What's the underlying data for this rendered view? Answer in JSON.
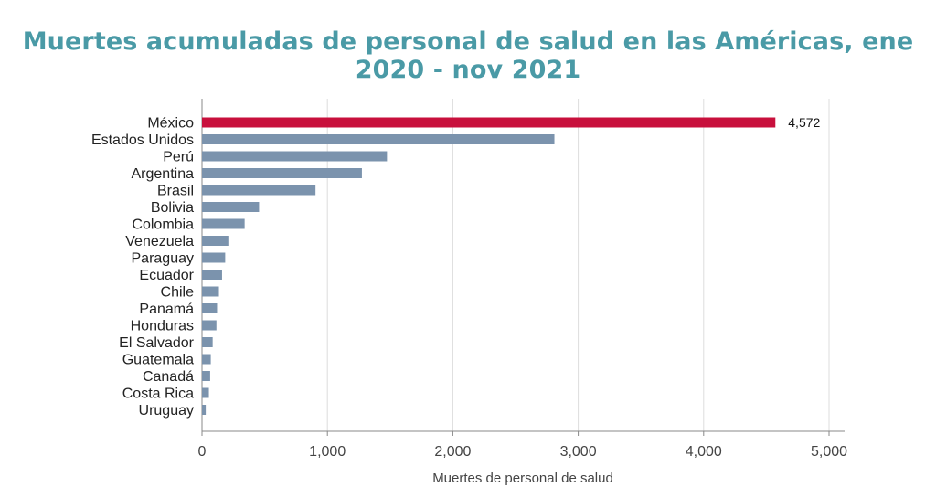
{
  "chart_data": {
    "type": "bar",
    "orientation": "horizontal",
    "title": "Muertes acumuladas de personal de salud en las Américas, ene 2020 - nov 2021",
    "xlabel": "Muertes de personal de salud",
    "ylabel": "",
    "xlim": [
      0,
      5000
    ],
    "xticks": [
      0,
      1000,
      2000,
      3000,
      4000,
      5000
    ],
    "xtick_labels": [
      "0",
      "1,000",
      "2,000",
      "3,000",
      "4,000",
      "5,000"
    ],
    "grid": true,
    "categories": [
      "México",
      "Estados Unidos",
      "Perú",
      "Argentina",
      "Brasil",
      "Bolivia",
      "Colombia",
      "Venezuela",
      "Paraguay",
      "Ecuador",
      "Chile",
      "Panamá",
      "Honduras",
      "El Salvador",
      "Guatemala",
      "Canadá",
      "Costa Rica",
      "Uruguay"
    ],
    "values": [
      4572,
      2810,
      1475,
      1275,
      905,
      455,
      340,
      210,
      185,
      160,
      135,
      120,
      115,
      85,
      70,
      65,
      55,
      30
    ],
    "data_labels": [
      {
        "category": "México",
        "text": "4,572"
      }
    ],
    "colors": {
      "highlight": "#c8103c",
      "default": "#7b93ad",
      "grid": "#dddddd",
      "axis": "#888888",
      "title": "#4a9aa6"
    },
    "highlight_index": 0
  }
}
